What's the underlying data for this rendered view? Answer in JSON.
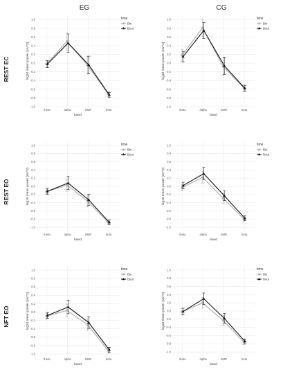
{
  "figure": {
    "column_titles": [
      "EG",
      "CG"
    ],
    "row_labels": [
      "REST EC",
      "REST EO",
      "NFT EO"
    ]
  },
  "chart_data": [
    {
      "type": "line",
      "panel": "REST EC / EG",
      "categories": [
        "theta",
        "alpha",
        "SMR",
        "beta"
      ],
      "xlabel": "band",
      "ylabel": "log10 mean power (uV^2)",
      "ylim": [
        -1.0,
        1.1
      ],
      "yticks": [
        1.0,
        0.8,
        0.6,
        0.4,
        0.2,
        0.0,
        -0.2,
        -0.4,
        -0.6,
        -0.8,
        -1.0
      ],
      "legend_title": "time",
      "legend_position": "top-right",
      "grid": true,
      "series": [
        {
          "name": "Bin",
          "color": "#aaaaaa",
          "values": [
            -0.02,
            0.5,
            -0.05,
            -0.71
          ],
          "error": [
            0.08,
            0.2,
            0.2,
            0.06
          ]
        },
        {
          "name": "Bout",
          "color": "#111111",
          "values": [
            -0.02,
            0.46,
            -0.04,
            -0.73
          ],
          "error": [
            0.08,
            0.21,
            0.2,
            0.06
          ]
        }
      ]
    },
    {
      "type": "line",
      "panel": "REST EC / CG",
      "categories": [
        "theta",
        "alpha",
        "SMR",
        "beta"
      ],
      "xlabel": "band",
      "ylabel": "log10 mean power (uV^2)",
      "ylim": [
        -1.0,
        1.1
      ],
      "yticks": [
        1.0,
        0.8,
        0.6,
        0.4,
        0.2,
        0.0,
        -0.2,
        -0.4,
        -0.6,
        -0.8,
        -1.0
      ],
      "legend_title": "time",
      "legend_position": "top-right",
      "grid": true,
      "series": [
        {
          "name": "Bin",
          "color": "#aaaaaa",
          "values": [
            0.18,
            0.81,
            -0.08,
            -0.57
          ],
          "error": [
            0.14,
            0.2,
            0.2,
            0.07
          ]
        },
        {
          "name": "Bout",
          "color": "#111111",
          "values": [
            0.15,
            0.75,
            -0.06,
            -0.58
          ],
          "error": [
            0.12,
            0.18,
            0.2,
            0.07
          ]
        }
      ]
    },
    {
      "type": "line",
      "panel": "REST EO / EG",
      "categories": [
        "theta",
        "alpha",
        "SMR",
        "beta"
      ],
      "xlabel": "band",
      "ylabel": "log10 mean power (uV^2)",
      "ylim": [
        -1.1,
        1.1
      ],
      "yticks": [
        1.0,
        0.8,
        0.6,
        0.4,
        0.2,
        0.0,
        -0.2,
        -0.4,
        -0.6,
        -0.8,
        -1.0
      ],
      "legend_title": "time",
      "legend_position": "top-right",
      "grid": true,
      "series": [
        {
          "name": "Bin",
          "color": "#aaaaaa",
          "values": [
            -0.13,
            0.03,
            -0.36,
            -0.88
          ],
          "error": [
            0.07,
            0.15,
            0.14,
            0.06
          ]
        },
        {
          "name": "Bout",
          "color": "#111111",
          "values": [
            -0.12,
            0.08,
            -0.33,
            -0.88
          ],
          "error": [
            0.07,
            0.16,
            0.14,
            0.06
          ]
        }
      ]
    },
    {
      "type": "line",
      "panel": "REST EO / CG",
      "categories": [
        "theta",
        "alpha",
        "SMR",
        "beta"
      ],
      "xlabel": "band",
      "ylabel": "log10 mean power (uV^2)",
      "ylim": [
        -1.1,
        1.1
      ],
      "yticks": [
        1.0,
        0.8,
        0.6,
        0.4,
        0.2,
        0.0,
        -0.2,
        -0.4,
        -0.6,
        -0.8,
        -1.0
      ],
      "legend_title": "time",
      "legend_position": "top-right",
      "grid": true,
      "series": [
        {
          "name": "Bin",
          "color": "#aaaaaa",
          "values": [
            -0.03,
            0.22,
            -0.29,
            -0.8
          ],
          "error": [
            0.08,
            0.14,
            0.12,
            0.06
          ]
        },
        {
          "name": "Bout",
          "color": "#111111",
          "values": [
            0.02,
            0.31,
            -0.23,
            -0.78
          ],
          "error": [
            0.08,
            0.15,
            0.12,
            0.06
          ]
        }
      ]
    },
    {
      "type": "line",
      "panel": "NFT EO / EG",
      "categories": [
        "theta",
        "alpha",
        "SMR",
        "beta"
      ],
      "xlabel": "band",
      "ylabel": "log10 mean power (uV^2)",
      "ylim": [
        -1.05,
        1.1
      ],
      "yticks": [
        1.0,
        0.8,
        0.6,
        0.4,
        0.2,
        0.0,
        -0.2,
        -0.4,
        -0.6,
        -0.8,
        -1.0
      ],
      "legend_title": "time",
      "legend_position": "top-right",
      "grid": true,
      "series": [
        {
          "name": "Bin",
          "color": "#aaaaaa",
          "values": [
            -0.1,
            0.04,
            -0.3,
            -0.92
          ],
          "error": [
            0.07,
            0.15,
            0.14,
            0.06
          ]
        },
        {
          "name": "Bout",
          "color": "#111111",
          "values": [
            -0.08,
            0.12,
            -0.25,
            -0.9
          ],
          "error": [
            0.07,
            0.16,
            0.14,
            0.06
          ]
        }
      ]
    },
    {
      "type": "line",
      "panel": "NFT EO / CG",
      "categories": [
        "theta",
        "alpha",
        "SMR",
        "beta"
      ],
      "xlabel": "band",
      "ylabel": "log10 mean power (uV^2)",
      "ylim": [
        -1.1,
        1.1
      ],
      "yticks": [
        1.0,
        0.8,
        0.6,
        0.4,
        0.2,
        0.0,
        -0.2,
        -0.4,
        -0.6,
        -0.8,
        -1.0
      ],
      "legend_title": "time",
      "legend_position": "top-right",
      "grid": true,
      "series": [
        {
          "name": "Bin",
          "color": "#aaaaaa",
          "values": [
            -0.02,
            0.2,
            -0.23,
            -0.76
          ],
          "error": [
            0.08,
            0.13,
            0.12,
            0.06
          ]
        },
        {
          "name": "Bout",
          "color": "#111111",
          "values": [
            -0.01,
            0.3,
            -0.18,
            -0.74
          ],
          "error": [
            0.08,
            0.14,
            0.12,
            0.06
          ]
        }
      ]
    }
  ]
}
